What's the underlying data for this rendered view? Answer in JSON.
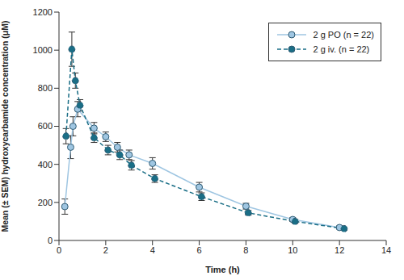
{
  "chart_data": {
    "type": "line",
    "x_label": "Time (h)",
    "y_label": "Mean (± SEM) hydroxycarbamide concentration (μM)",
    "xlim": [
      0,
      14
    ],
    "xticks": [
      0,
      2,
      4,
      6,
      8,
      10,
      12,
      14
    ],
    "ylim": [
      0,
      1200
    ],
    "yticks": [
      0,
      200,
      400,
      600,
      800,
      1000,
      1200
    ],
    "grid": false,
    "legend": "upper right",
    "series": [
      {
        "name": "2 g PO (n = 22)",
        "color": "#9fc6e2",
        "marker": "circle",
        "line_style": "solid",
        "x": [
          0.25,
          0.5,
          0.6,
          0.8,
          1.5,
          2,
          2.5,
          3,
          4,
          6,
          8,
          10,
          12
        ],
        "values": [
          178,
          490,
          600,
          690,
          590,
          545,
          490,
          450,
          405,
          280,
          180,
          110,
          68
        ],
        "sem": [
          40,
          60,
          50,
          40,
          30,
          25,
          25,
          25,
          30,
          25,
          15,
          10,
          8
        ]
      },
      {
        "name": "2 g iv. (n = 22)",
        "color": "#1a6e86",
        "marker": "circle",
        "line_style": "dashed",
        "x": [
          0.3,
          0.55,
          0.7,
          0.9,
          1.5,
          2.1,
          2.6,
          3.1,
          4.1,
          6.1,
          8.1,
          10.1,
          12.2
        ],
        "values": [
          548,
          1005,
          840,
          710,
          540,
          475,
          450,
          395,
          325,
          230,
          145,
          100,
          62
        ],
        "sem": [
          40,
          90,
          40,
          30,
          25,
          25,
          25,
          25,
          20,
          20,
          12,
          10,
          8
        ]
      }
    ]
  }
}
